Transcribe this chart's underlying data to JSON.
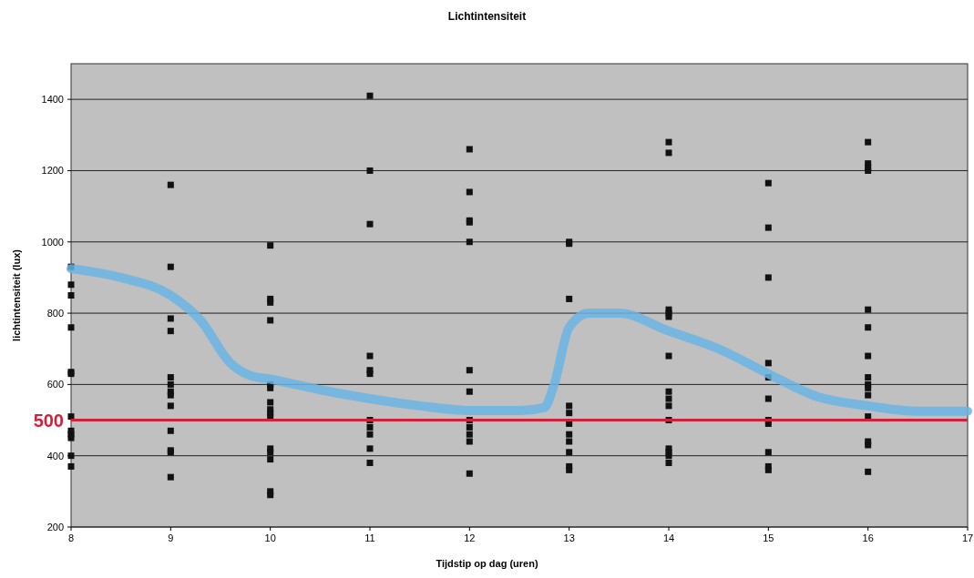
{
  "chart_data": {
    "type": "scatter",
    "title": "Lichtintensiteit",
    "xlabel": "Tijdstip op dag (uren)",
    "ylabel": "lichtintensiteit (lux)",
    "xlim": [
      8,
      17
    ],
    "xticks": [
      8,
      9,
      10,
      11,
      12,
      13,
      14,
      15,
      16,
      17
    ],
    "ylim": [
      200,
      1500
    ],
    "yticks": [
      200,
      400,
      600,
      800,
      1000,
      1200,
      1400
    ],
    "grid": "y",
    "marker": "square",
    "series": [
      {
        "color": "#111111",
        "x": [
          8,
          8,
          8,
          8,
          8,
          8,
          8,
          8,
          8,
          8,
          8,
          8,
          9,
          9,
          9,
          9,
          9,
          9,
          9,
          9,
          9,
          9,
          9,
          9,
          9,
          10,
          10,
          10,
          10,
          10,
          10,
          10,
          10,
          10,
          10,
          10,
          10,
          10,
          10,
          10,
          11,
          11,
          11,
          11,
          11,
          11,
          11,
          11,
          11,
          11,
          11,
          12,
          12,
          12,
          12,
          12,
          12,
          12,
          12,
          12,
          12,
          12,
          12,
          13,
          13,
          13,
          13,
          13,
          13,
          13,
          13,
          13,
          13,
          13,
          14,
          14,
          14,
          14,
          14,
          14,
          14,
          14,
          14,
          14,
          14,
          14,
          14,
          14,
          15,
          15,
          15,
          15,
          15,
          15,
          15,
          15,
          15,
          15,
          15,
          16,
          16,
          16,
          16,
          16,
          16,
          16,
          16,
          16,
          16,
          16,
          16,
          16,
          16,
          16
        ],
        "values": [
          930,
          880,
          850,
          760,
          635,
          630,
          510,
          470,
          460,
          450,
          400,
          370,
          1160,
          930,
          785,
          750,
          620,
          600,
          580,
          570,
          540,
          470,
          415,
          410,
          340,
          990,
          840,
          830,
          780,
          600,
          590,
          550,
          530,
          520,
          510,
          420,
          410,
          390,
          300,
          290,
          1410,
          1200,
          1050,
          680,
          640,
          630,
          500,
          480,
          460,
          420,
          380,
          1260,
          1140,
          1060,
          1055,
          1000,
          640,
          580,
          500,
          480,
          460,
          440,
          350,
          1000,
          995,
          840,
          540,
          520,
          490,
          460,
          440,
          410,
          370,
          360,
          1280,
          1250,
          810,
          800,
          790,
          680,
          580,
          560,
          540,
          500,
          420,
          410,
          400,
          380,
          1165,
          1040,
          900,
          660,
          620,
          560,
          500,
          490,
          410,
          370,
          360,
          1280,
          1220,
          1210,
          1200,
          810,
          760,
          680,
          620,
          600,
          590,
          570,
          510,
          440,
          430,
          355
        ]
      },
      {
        "type": "line",
        "color": "#6ab4e4",
        "marker": "none",
        "x": [
          8,
          8.5,
          9,
          9.3,
          9.6,
          9.8,
          10,
          10.5,
          11,
          11.5,
          12,
          12.5,
          12.75,
          12.85,
          13,
          13.2,
          13.5,
          14,
          14.5,
          15,
          15.5,
          16,
          16.5,
          17
        ],
        "values": [
          925,
          900,
          850,
          780,
          660,
          625,
          615,
          585,
          560,
          540,
          527,
          527,
          535,
          600,
          760,
          800,
          800,
          750,
          700,
          630,
          565,
          540,
          525,
          525
        ]
      }
    ],
    "ref_lines": [
      {
        "axis": "y",
        "value": 500,
        "label": "500",
        "color": "#d0203a"
      }
    ]
  }
}
